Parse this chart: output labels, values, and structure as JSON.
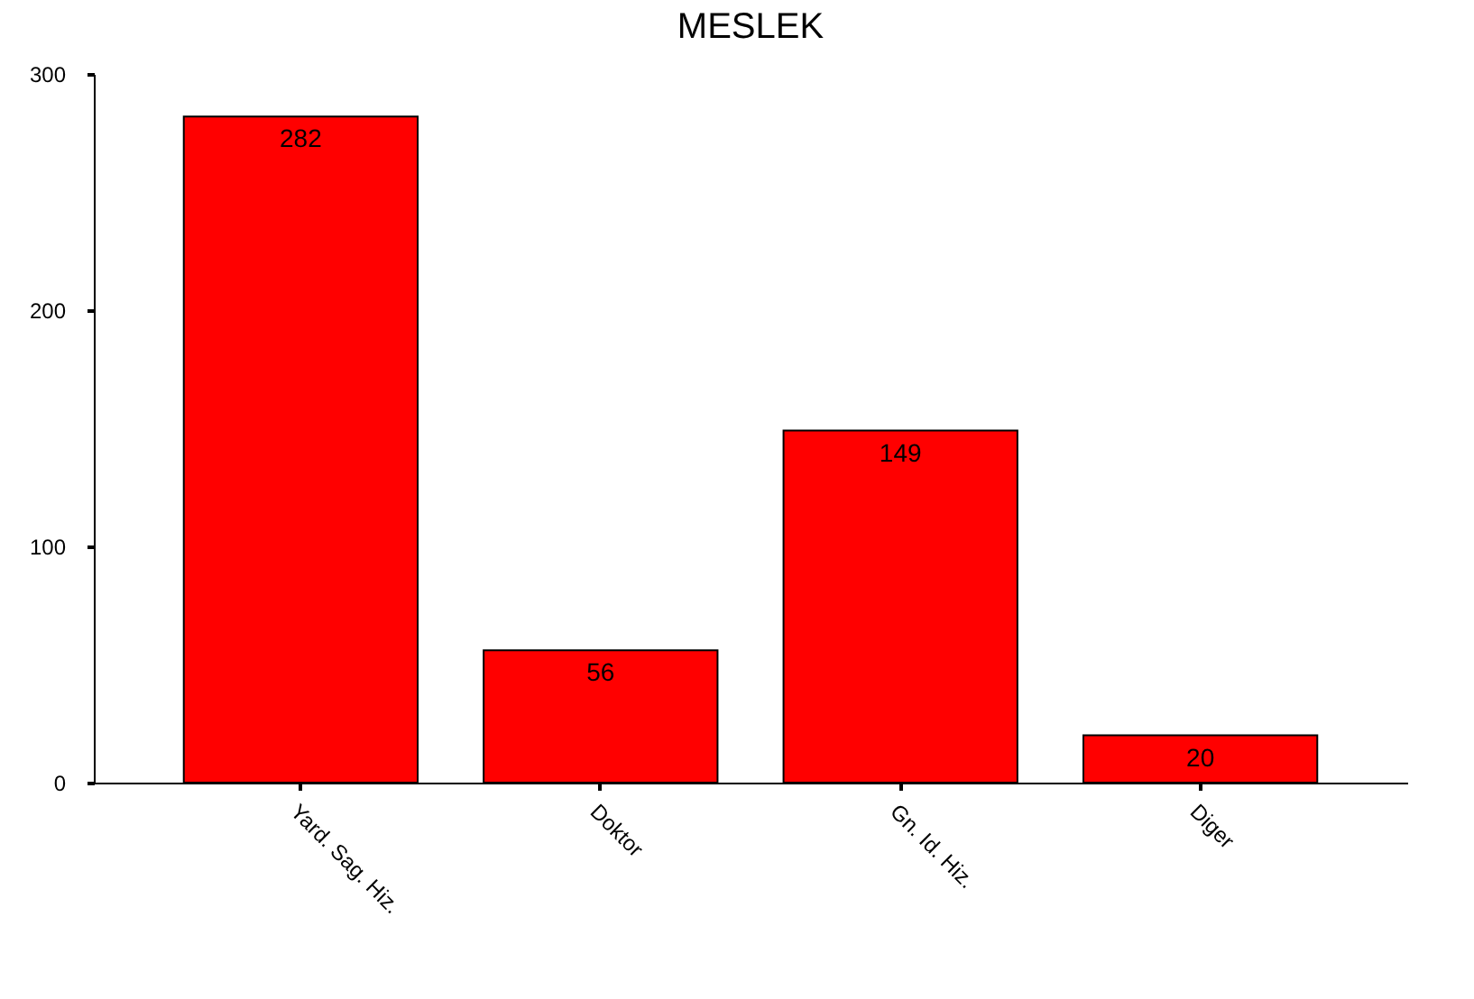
{
  "chart_data": {
    "type": "bar",
    "title": "MESLEK",
    "categories": [
      "Yard. Sag. Hiz.",
      "Doktor",
      "Gn. Id. Hiz.",
      "Diger"
    ],
    "values": [
      282,
      56,
      149,
      20
    ],
    "color": "#ff0000",
    "ylim": [
      0,
      300
    ],
    "yticks": [
      0,
      100,
      200,
      300
    ],
    "grid": false,
    "data_labels": true
  }
}
